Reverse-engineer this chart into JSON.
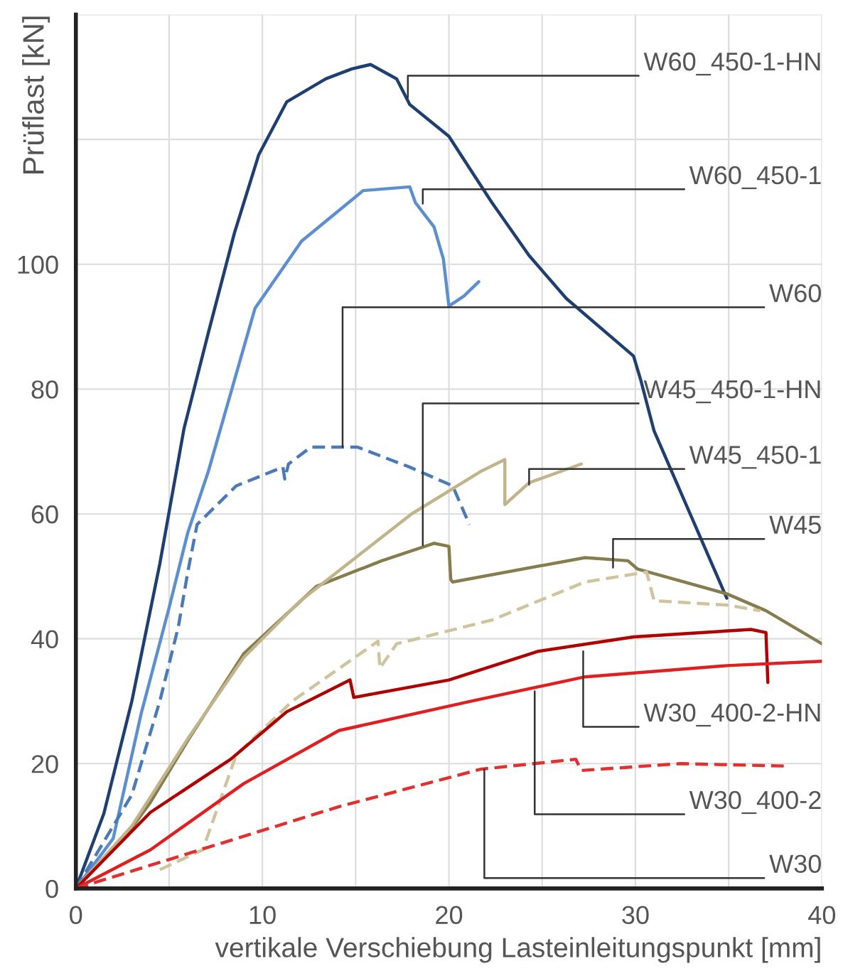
{
  "chart_data": {
    "type": "line",
    "xlabel": "vertikale Verschiebung Lasteinleitungspunkt [mm]",
    "ylabel": "Prüflast [kN]",
    "xlim": [
      0,
      40
    ],
    "xticks": [
      0,
      {
        "value": 5,
        "label": null
      },
      10,
      {
        "value": 15,
        "label": null
      },
      20,
      {
        "value": 25,
        "label": null
      },
      30,
      {
        "value": 35,
        "label": null
      },
      40
    ],
    "ylim": [
      0,
      140
    ],
    "yticks": [
      0,
      20,
      40,
      60,
      80,
      100,
      {
        "value": 120,
        "label": null
      },
      {
        "value": 140,
        "label": null
      }
    ],
    "grid": true,
    "legend": false,
    "marker": "none",
    "series": [
      {
        "color": "#1f3f73",
        "line_style": "solid",
        "x": [
          0,
          1.5,
          3,
          4.5,
          5.8,
          7.1,
          8.5,
          9.8,
          11.3,
          13.4,
          14.8,
          15.8,
          17.2,
          17.9,
          20,
          20.8,
          22.3,
          24.3,
          26.3,
          29.9,
          30.3,
          31,
          34.9
        ],
        "values": [
          0,
          12,
          30,
          52,
          73.7,
          89,
          105,
          117.5,
          126,
          129.7,
          131.3,
          132,
          129.7,
          125.6,
          120.5,
          116.8,
          109.9,
          101.4,
          94.5,
          85.3,
          81.3,
          73.3,
          46.5
        ]
      },
      {
        "color": "#5b8fd0",
        "line_style": "solid",
        "x": [
          0,
          2,
          3.5,
          5,
          6,
          7.1,
          9.6,
          12.1,
          15.4,
          17.9,
          18.2,
          19.2,
          19.7,
          20,
          20.8,
          21.6
        ],
        "values": [
          0,
          8,
          28,
          45,
          57,
          66.8,
          92.9,
          103.7,
          111.8,
          112.4,
          109.9,
          106,
          100.9,
          93.3,
          94.9,
          97.2
        ]
      },
      {
        "color": "#4a7ab8",
        "line_style": "dashed",
        "x": [
          0,
          3,
          4.5,
          5.5,
          6,
          6.5,
          8.6,
          11.1,
          11.2,
          11.4,
          12.6,
          15.1,
          17.9,
          20.2,
          21.1
        ],
        "values": [
          0,
          15,
          30,
          42,
          50.7,
          58.3,
          64.5,
          67.5,
          65.6,
          68,
          70.7,
          70.7,
          67.5,
          64.5,
          58.3
        ]
      },
      {
        "color": "#857d4e",
        "line_style": "solid",
        "x": [
          0,
          2.7,
          4,
          6,
          9,
          12.9,
          16.4,
          19.2,
          20,
          20.1,
          20.2,
          27.3,
          29.6,
          30.1,
          34.9,
          37,
          40
        ],
        "values": [
          0,
          8.5,
          13.8,
          23.7,
          37.6,
          48.4,
          52.5,
          55.3,
          54.8,
          49.5,
          49.1,
          53,
          52.5,
          51.2,
          47.2,
          44.5,
          39.2
        ]
      },
      {
        "color": "#c2b48a",
        "line_style": "solid",
        "x": [
          0,
          3,
          6,
          9,
          12,
          15,
          18,
          21.7,
          23,
          23,
          24.3,
          27.1
        ],
        "values": [
          0,
          10,
          24,
          37,
          46,
          53,
          60,
          66.8,
          68.7,
          61.5,
          65,
          68
        ]
      },
      {
        "color": "#cfc49d",
        "line_style": "dashed",
        "x": [
          4.5,
          6.8,
          8.6,
          11.6,
          16.2,
          16.3,
          17.2,
          22.3,
          27.3,
          30.6,
          31,
          34.9,
          36.7
        ],
        "values": [
          3,
          6.2,
          21.4,
          30,
          39.6,
          35.3,
          39.2,
          43,
          49.1,
          50.7,
          46.1,
          45.4,
          44.5
        ]
      },
      {
        "color": "#b00000",
        "line_style": "solid",
        "x": [
          0,
          4,
          8.3,
          11.3,
          14.7,
          14.9,
          20,
          24.8,
          29.9,
          36.2,
          37,
          37.1
        ],
        "values": [
          0,
          12.2,
          20.7,
          28.3,
          33.4,
          30.6,
          33.4,
          38,
          40.3,
          41.5,
          41,
          33
        ]
      },
      {
        "color": "#e02020",
        "line_style": "solid",
        "x": [
          0,
          4,
          9,
          14.1,
          21.2,
          27.3,
          34.9,
          40
        ],
        "values": [
          0,
          6.2,
          16.8,
          25.3,
          30,
          33.9,
          35.7,
          36.4
        ]
      },
      {
        "color": "#e03030",
        "line_style": "dashed",
        "x": [
          0,
          14.1,
          21.7,
          26.8,
          27.1,
          32.4,
          38.2
        ],
        "values": [
          0,
          13.1,
          19.1,
          20.7,
          18.9,
          20,
          19.6
        ]
      }
    ],
    "annotations": [
      {
        "text": "W60_450-1-HN",
        "x": 17.8,
        "y": 126.7
      },
      {
        "text": "W60_450-1",
        "x": 18.6,
        "y": 109.7
      },
      {
        "text": "W60",
        "x": 14.3,
        "y": 70.7
      },
      {
        "text": "W45_450-1-HN",
        "x": 18.6,
        "y": 55
      },
      {
        "text": "W45_450-1",
        "x": 24.3,
        "y": 64.7
      },
      {
        "text": "W45",
        "x": 28.8,
        "y": 51.4
      },
      {
        "text": "W30_400-2-HN",
        "x": 27.2,
        "y": 38
      },
      {
        "text": "W30_400-2",
        "x": 24.6,
        "y": 31.6
      },
      {
        "text": "W30",
        "x": 21.9,
        "y": 19.1
      }
    ]
  }
}
